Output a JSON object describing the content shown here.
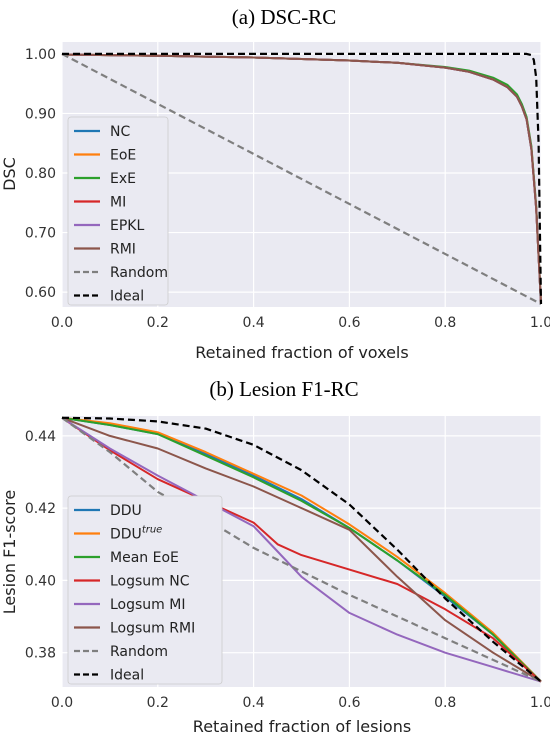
{
  "chart_data": [
    {
      "type": "line",
      "title": "(a) DSC-RC",
      "xlabel": "Retained fraction of voxels",
      "ylabel": "DSC",
      "xlim": [
        0,
        1
      ],
      "ylim": [
        0.575,
        1.02
      ],
      "xticks": [
        "0.0",
        "0.2",
        "0.4",
        "0.6",
        "0.8",
        "1.0"
      ],
      "xtick_values": [
        0,
        0.2,
        0.4,
        0.6,
        0.8,
        1.0
      ],
      "yticks": [
        "1.00",
        "0.90",
        "0.80",
        "0.70",
        "0.60"
      ],
      "ytick_values": [
        1.0,
        0.9,
        0.8,
        0.7,
        0.6
      ],
      "grid": true,
      "legend_position": "left",
      "series": [
        {
          "name": "NC",
          "color": "#1f77b4",
          "dash": "solid",
          "x": [
            0,
            0.2,
            0.4,
            0.6,
            0.7,
            0.8,
            0.85,
            0.9,
            0.93,
            0.95,
            0.96,
            0.97,
            0.98,
            0.99,
            1.0
          ],
          "y": [
            0.999,
            0.997,
            0.994,
            0.989,
            0.985,
            0.977,
            0.97,
            0.957,
            0.944,
            0.928,
            0.912,
            0.89,
            0.84,
            0.74,
            0.58
          ]
        },
        {
          "name": "EoE",
          "color": "#ff7f0e",
          "dash": "solid",
          "x": [
            0,
            0.2,
            0.4,
            0.6,
            0.7,
            0.8,
            0.85,
            0.9,
            0.93,
            0.95,
            0.96,
            0.97,
            0.98,
            0.99,
            1.0
          ],
          "y": [
            0.999,
            0.997,
            0.994,
            0.989,
            0.985,
            0.977,
            0.971,
            0.958,
            0.946,
            0.93,
            0.914,
            0.892,
            0.842,
            0.742,
            0.58
          ]
        },
        {
          "name": "ExE",
          "color": "#2ca02c",
          "dash": "solid",
          "x": [
            0,
            0.2,
            0.4,
            0.6,
            0.7,
            0.8,
            0.85,
            0.9,
            0.93,
            0.95,
            0.96,
            0.97,
            0.98,
            0.99,
            1.0
          ],
          "y": [
            0.999,
            0.997,
            0.994,
            0.989,
            0.985,
            0.978,
            0.972,
            0.96,
            0.948,
            0.932,
            0.916,
            0.894,
            0.845,
            0.745,
            0.58
          ]
        },
        {
          "name": "MI",
          "color": "#d62728",
          "dash": "solid",
          "x": [
            0,
            0.2,
            0.4,
            0.6,
            0.7,
            0.8,
            0.85,
            0.9,
            0.93,
            0.95,
            0.96,
            0.97,
            0.98,
            0.99,
            1.0
          ],
          "y": [
            0.999,
            0.997,
            0.994,
            0.989,
            0.985,
            0.977,
            0.97,
            0.957,
            0.944,
            0.928,
            0.912,
            0.89,
            0.84,
            0.74,
            0.58
          ]
        },
        {
          "name": "EPKL",
          "color": "#9467bd",
          "dash": "solid",
          "x": [
            0,
            0.2,
            0.4,
            0.6,
            0.7,
            0.8,
            0.85,
            0.9,
            0.93,
            0.95,
            0.96,
            0.97,
            0.98,
            0.99,
            1.0
          ],
          "y": [
            0.999,
            0.997,
            0.994,
            0.989,
            0.985,
            0.977,
            0.97,
            0.957,
            0.944,
            0.928,
            0.912,
            0.89,
            0.84,
            0.74,
            0.58
          ]
        },
        {
          "name": "RMI",
          "color": "#8c564b",
          "dash": "solid",
          "x": [
            0,
            0.2,
            0.4,
            0.6,
            0.7,
            0.8,
            0.85,
            0.9,
            0.93,
            0.95,
            0.96,
            0.97,
            0.98,
            0.99,
            1.0
          ],
          "y": [
            0.999,
            0.997,
            0.994,
            0.989,
            0.985,
            0.977,
            0.97,
            0.957,
            0.944,
            0.928,
            0.912,
            0.89,
            0.84,
            0.74,
            0.58
          ]
        },
        {
          "name": "Random",
          "color": "#7f7f7f",
          "dash": "dashed",
          "x": [
            0,
            1.0
          ],
          "y": [
            1.0,
            0.58
          ]
        },
        {
          "name": "Ideal",
          "color": "#000000",
          "dash": "dashed",
          "x": [
            0,
            0.97,
            0.98,
            0.985,
            0.99,
            0.995,
            1.0
          ],
          "y": [
            1.0,
            1.0,
            0.998,
            0.99,
            0.96,
            0.85,
            0.58
          ]
        }
      ]
    },
    {
      "type": "line",
      "title": "(b) Lesion F1-RC",
      "xlabel": "Retained fraction of lesions",
      "ylabel": "Lesion F1-score",
      "xlim": [
        0,
        1
      ],
      "ylim": [
        0.3705,
        0.4455
      ],
      "xticks": [
        "0.0",
        "0.2",
        "0.4",
        "0.6",
        "0.8",
        "1.0"
      ],
      "xtick_values": [
        0,
        0.2,
        0.4,
        0.6,
        0.8,
        1.0
      ],
      "yticks": [
        "0.44",
        "0.42",
        "0.40",
        "0.38"
      ],
      "ytick_values": [
        0.44,
        0.42,
        0.4,
        0.38
      ],
      "grid": true,
      "legend_position": "left",
      "series": [
        {
          "name": "DDU",
          "name_superscript": "",
          "color": "#1f77b4",
          "dash": "solid",
          "x": [
            0,
            0.1,
            0.2,
            0.3,
            0.4,
            0.5,
            0.6,
            0.7,
            0.8,
            0.9,
            1.0
          ],
          "y": [
            0.445,
            0.443,
            0.4405,
            0.435,
            0.429,
            0.4225,
            0.4145,
            0.4055,
            0.3955,
            0.385,
            0.372
          ]
        },
        {
          "name": "DDU",
          "name_superscript": "true",
          "color": "#ff7f0e",
          "dash": "solid",
          "x": [
            0,
            0.1,
            0.2,
            0.3,
            0.4,
            0.5,
            0.6,
            0.7,
            0.8,
            0.9,
            1.0
          ],
          "y": [
            0.445,
            0.4435,
            0.441,
            0.4355,
            0.4295,
            0.4235,
            0.4155,
            0.4065,
            0.3965,
            0.3855,
            0.372
          ]
        },
        {
          "name": "Mean EoE",
          "name_superscript": "",
          "color": "#2ca02c",
          "dash": "solid",
          "x": [
            0,
            0.1,
            0.2,
            0.3,
            0.4,
            0.5,
            0.6,
            0.7,
            0.8,
            0.9,
            1.0
          ],
          "y": [
            0.445,
            0.443,
            0.4405,
            0.4345,
            0.4285,
            0.422,
            0.4145,
            0.4055,
            0.396,
            0.385,
            0.372
          ]
        },
        {
          "name": "Logsum NC",
          "name_superscript": "",
          "color": "#d62728",
          "dash": "solid",
          "x": [
            0,
            0.1,
            0.2,
            0.3,
            0.4,
            0.45,
            0.5,
            0.6,
            0.7,
            0.8,
            0.9,
            1.0
          ],
          "y": [
            0.445,
            0.436,
            0.428,
            0.422,
            0.416,
            0.41,
            0.407,
            0.403,
            0.399,
            0.392,
            0.384,
            0.372
          ]
        },
        {
          "name": "Logsum MI",
          "name_superscript": "",
          "color": "#9467bd",
          "dash": "solid",
          "x": [
            0,
            0.1,
            0.2,
            0.3,
            0.4,
            0.45,
            0.5,
            0.6,
            0.7,
            0.8,
            0.9,
            1.0
          ],
          "y": [
            0.445,
            0.4365,
            0.429,
            0.422,
            0.415,
            0.408,
            0.401,
            0.391,
            0.385,
            0.38,
            0.376,
            0.372
          ]
        },
        {
          "name": "Logsum RMI",
          "name_superscript": "",
          "color": "#8c564b",
          "dash": "solid",
          "x": [
            0,
            0.1,
            0.2,
            0.3,
            0.4,
            0.5,
            0.6,
            0.7,
            0.8,
            0.9,
            1.0
          ],
          "y": [
            0.445,
            0.44,
            0.4365,
            0.431,
            0.426,
            0.42,
            0.414,
            0.401,
            0.389,
            0.38,
            0.372
          ]
        },
        {
          "name": "Random",
          "name_superscript": "",
          "color": "#7f7f7f",
          "dash": "dashed",
          "x": [
            0,
            0.1,
            0.2,
            0.3,
            0.4,
            0.5,
            0.6,
            0.7,
            0.8,
            0.9,
            1.0
          ],
          "y": [
            0.445,
            0.4355,
            0.4245,
            0.417,
            0.409,
            0.4025,
            0.396,
            0.39,
            0.384,
            0.378,
            0.372
          ]
        },
        {
          "name": "Ideal",
          "name_superscript": "",
          "color": "#000000",
          "dash": "dashed",
          "x": [
            0,
            0.1,
            0.2,
            0.3,
            0.4,
            0.5,
            0.6,
            0.7,
            0.8,
            0.9,
            1.0
          ],
          "y": [
            0.445,
            0.4448,
            0.444,
            0.442,
            0.4375,
            0.4305,
            0.421,
            0.4085,
            0.395,
            0.383,
            0.372
          ]
        }
      ]
    }
  ]
}
